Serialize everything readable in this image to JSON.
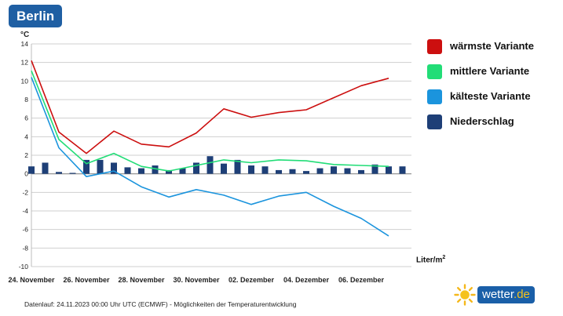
{
  "header": {
    "city": "Berlin",
    "unit": "°C"
  },
  "legend": [
    {
      "label": "wärmste Variante",
      "color": "#cc0f0f"
    },
    {
      "label": "mittlere Variante",
      "color": "#22dd77"
    },
    {
      "label": "kälteste Variante",
      "color": "#1b94dd"
    },
    {
      "label": "Niederschlag",
      "color": "#1e3f77"
    }
  ],
  "precip_unit": {
    "base": "Liter/m",
    "exp": "2"
  },
  "footnote": "Datenlauf: 24.11.2023 00:00 Uhr UTC (ECMWF) - Möglichkeiten der Temperaturentwicklung",
  "brand": {
    "name": "wetter",
    "tld": ".de"
  },
  "chart_data": {
    "type": "line",
    "title": "Berlin",
    "ylabel": "°C",
    "ylim": [
      -10,
      14
    ],
    "yticks": [
      14,
      12,
      10,
      8,
      6,
      4,
      2,
      0,
      -2,
      -4,
      -6,
      -8,
      -10
    ],
    "xlim_days": [
      0,
      13
    ],
    "xticks": [
      {
        "day": 0,
        "label": "24. November"
      },
      {
        "day": 2,
        "label": "26. November"
      },
      {
        "day": 4,
        "label": "28. November"
      },
      {
        "day": 6,
        "label": "30. November"
      },
      {
        "day": 8,
        "label": "02. Dezember"
      },
      {
        "day": 10,
        "label": "04. Dezember"
      },
      {
        "day": 12,
        "label": "06. Dezember"
      }
    ],
    "series": [
      {
        "name": "wärmste Variante",
        "color": "#cc0f0f",
        "x": [
          0,
          1,
          2,
          3,
          4,
          5,
          6,
          7,
          8,
          9,
          10,
          11,
          12,
          13
        ],
        "values": [
          12.2,
          4.5,
          2.2,
          4.6,
          3.2,
          2.9,
          4.4,
          7.0,
          6.1,
          6.6,
          6.9,
          8.2,
          9.5,
          10.3
        ]
      },
      {
        "name": "mittlere Variante",
        "color": "#22dd77",
        "x": [
          0,
          1,
          2,
          3,
          4,
          5,
          6,
          7,
          8,
          9,
          10,
          11,
          12,
          13
        ],
        "values": [
          11.1,
          3.7,
          1.1,
          2.2,
          0.8,
          0.3,
          0.9,
          1.5,
          1.2,
          1.5,
          1.4,
          1.0,
          0.9,
          0.8
        ]
      },
      {
        "name": "kälteste Variante",
        "color": "#1b94dd",
        "x": [
          0,
          1,
          2,
          3,
          4,
          5,
          6,
          7,
          8,
          9,
          10,
          11,
          12,
          13
        ],
        "values": [
          10.4,
          2.8,
          -0.3,
          0.3,
          -1.4,
          -2.5,
          -1.7,
          -2.3,
          -3.3,
          -2.4,
          -2.0,
          -3.5,
          -4.8,
          -6.7
        ]
      }
    ],
    "bars": {
      "name": "Niederschlag",
      "color": "#1e3f77",
      "x": [
        0,
        0.5,
        1,
        1.5,
        2,
        2.5,
        3,
        3.5,
        4,
        4.5,
        5,
        5.5,
        6,
        6.5,
        7,
        7.5,
        8,
        8.5,
        9,
        9.5,
        10,
        10.5,
        11,
        11.5,
        12,
        12.5,
        13,
        13.5
      ],
      "values": [
        0.8,
        1.2,
        0.2,
        0.1,
        1.5,
        1.5,
        1.2,
        0.7,
        0.6,
        0.9,
        0.4,
        0.6,
        1.2,
        1.9,
        1.1,
        1.5,
        0.9,
        0.8,
        0.4,
        0.5,
        0.3,
        0.6,
        0.8,
        0.6,
        0.4,
        1.0,
        0.8,
        0.8
      ]
    }
  }
}
